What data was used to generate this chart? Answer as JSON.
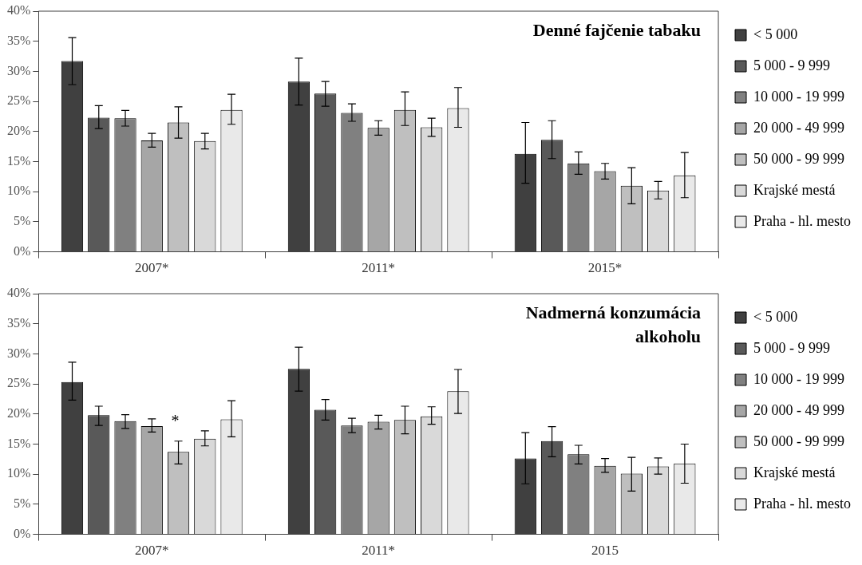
{
  "chart_data": [
    {
      "type": "bar",
      "title": "Denné fajčenie tabaku",
      "categories": [
        "2007*",
        "2011*",
        "2015*"
      ],
      "ylim": [
        0,
        40
      ],
      "yticks": [
        {
          "value": 0,
          "label": "0%"
        },
        {
          "value": 5,
          "label": "5%"
        },
        {
          "value": 10,
          "label": "10%"
        },
        {
          "value": 15,
          "label": "15%"
        },
        {
          "value": 20,
          "label": "20%"
        },
        {
          "value": 25,
          "label": "25%"
        },
        {
          "value": 30,
          "label": "30%"
        },
        {
          "value": 35,
          "label": "35%"
        },
        {
          "value": 40,
          "label": "40%"
        }
      ],
      "legend": "right",
      "grid": false,
      "series": [
        {
          "name": "< 5 000",
          "color": "#404040",
          "values": [
            31.7,
            28.3,
            16.3
          ],
          "errors": [
            [
              27.8,
              35.6
            ],
            [
              24.4,
              32.2
            ],
            [
              11.4,
              21.5
            ]
          ]
        },
        {
          "name": "5 000 - 9 999",
          "color": "#595959",
          "values": [
            22.3,
            26.3,
            18.6
          ],
          "errors": [
            [
              20.5,
              24.3
            ],
            [
              24.2,
              28.3
            ],
            [
              15.5,
              21.8
            ]
          ]
        },
        {
          "name": "10 000 - 19 999",
          "color": "#808080",
          "values": [
            22.2,
            23.1,
            14.7
          ],
          "errors": [
            [
              20.9,
              23.5
            ],
            [
              21.7,
              24.6
            ],
            [
              12.9,
              16.6
            ]
          ]
        },
        {
          "name": "20 000 - 49 999",
          "color": "#a6a6a6",
          "values": [
            18.5,
            20.6,
            13.4
          ],
          "errors": [
            [
              17.4,
              19.7
            ],
            [
              19.4,
              21.8
            ],
            [
              12.1,
              14.7
            ]
          ]
        },
        {
          "name": "50 000 - 99 999",
          "color": "#bfbfbf",
          "values": [
            21.5,
            23.6,
            11.0
          ],
          "errors": [
            [
              18.9,
              24.1
            ],
            [
              21.0,
              26.6
            ],
            [
              8.0,
              14.0
            ]
          ]
        },
        {
          "name": "Krajské mestá",
          "color": "#d9d9d9",
          "values": [
            18.4,
            20.7,
            10.2
          ],
          "errors": [
            [
              17.1,
              19.7
            ],
            [
              19.2,
              22.2
            ],
            [
              8.8,
              11.7
            ]
          ]
        },
        {
          "name": "Praha - hl. mesto",
          "color": "#e9e9e9",
          "values": [
            23.6,
            23.9,
            12.7
          ],
          "errors": [
            [
              21.2,
              26.2
            ],
            [
              20.7,
              27.3
            ],
            [
              9.0,
              16.5
            ]
          ]
        }
      ]
    },
    {
      "type": "bar",
      "title": "Nadmerná konzumácia alkoholu",
      "categories": [
        "2007*",
        "2011*",
        "2015"
      ],
      "ylim": [
        0,
        40
      ],
      "yticks": [
        {
          "value": 0,
          "label": "0%"
        },
        {
          "value": 5,
          "label": "5%"
        },
        {
          "value": 10,
          "label": "10%"
        },
        {
          "value": 15,
          "label": "15%"
        },
        {
          "value": 20,
          "label": "20%"
        },
        {
          "value": 25,
          "label": "25%"
        },
        {
          "value": 30,
          "label": "30%"
        },
        {
          "value": 35,
          "label": "35%"
        },
        {
          "value": 40,
          "label": "40%"
        }
      ],
      "legend": "right",
      "grid": false,
      "annotations": [
        "*"
      ],
      "series": [
        {
          "name": "< 5 000",
          "color": "#404040",
          "values": [
            25.3,
            27.5,
            12.6
          ],
          "errors": [
            [
              22.3,
              28.6
            ],
            [
              23.8,
              31.1
            ],
            [
              8.4,
              16.9
            ]
          ]
        },
        {
          "name": "5 000 - 9 999",
          "color": "#595959",
          "values": [
            19.8,
            20.7,
            15.5
          ],
          "errors": [
            [
              18.1,
              21.3
            ],
            [
              19.0,
              22.4
            ],
            [
              12.9,
              17.9
            ]
          ]
        },
        {
          "name": "10 000 - 19 999",
          "color": "#808080",
          "values": [
            18.8,
            18.1,
            13.3
          ],
          "errors": [
            [
              17.6,
              19.9
            ],
            [
              16.9,
              19.3
            ],
            [
              11.7,
              14.8
            ]
          ]
        },
        {
          "name": "20 000 - 49 999",
          "color": "#a6a6a6",
          "values": [
            18.0,
            18.7,
            11.4
          ],
          "errors": [
            [
              17.0,
              19.2
            ],
            [
              17.5,
              19.8
            ],
            [
              10.3,
              12.6
            ]
          ]
        },
        {
          "name": "50 000 - 99 999",
          "color": "#bfbfbf",
          "values": [
            13.7,
            19.0,
            10.1
          ],
          "errors": [
            [
              11.7,
              15.5
            ],
            [
              16.7,
              21.3
            ],
            [
              7.2,
              12.8
            ]
          ]
        },
        {
          "name": "Krajské mestá",
          "color": "#d9d9d9",
          "values": [
            15.9,
            19.6,
            11.3
          ],
          "errors": [
            [
              14.7,
              17.2
            ],
            [
              18.3,
              21.2
            ],
            [
              10.0,
              12.7
            ]
          ]
        },
        {
          "name": "Praha - hl. mesto",
          "color": "#e9e9e9",
          "values": [
            19.1,
            23.8,
            11.8
          ],
          "errors": [
            [
              16.2,
              22.2
            ],
            [
              20.1,
              27.4
            ],
            [
              8.5,
              15.0
            ]
          ]
        }
      ]
    }
  ]
}
